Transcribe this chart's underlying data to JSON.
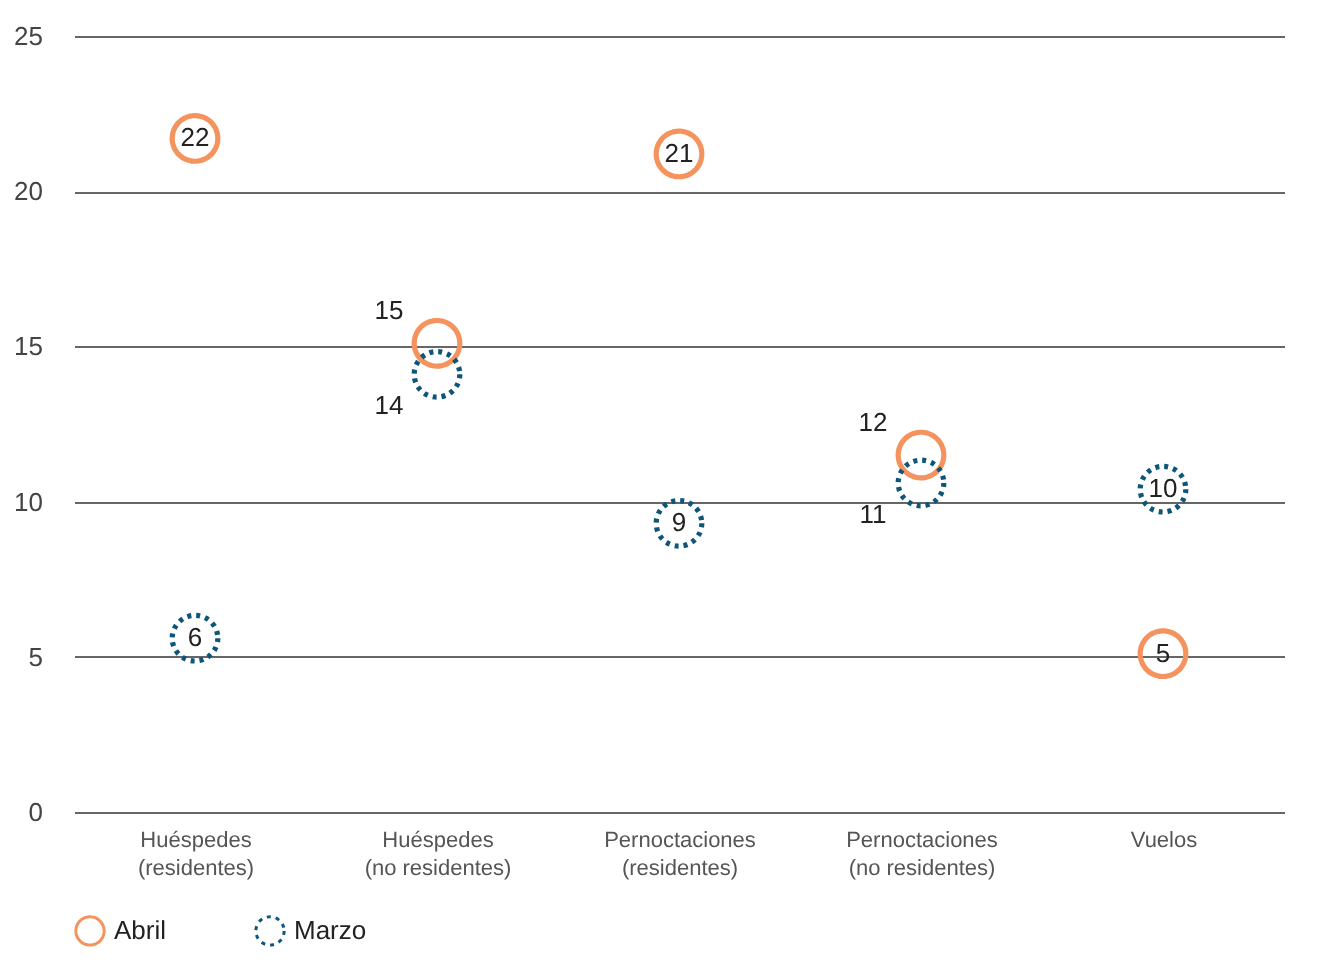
{
  "chart_data": {
    "type": "scatter",
    "categories": [
      "Huéspedes (residentes)",
      "Huéspedes (no residentes)",
      "Pernoctaciones (residentes)",
      "Pernoctaciones (no residentes)",
      "Vuelos"
    ],
    "series": [
      {
        "name": "Abril",
        "color": "#f4935e",
        "line_style": "solid",
        "values": [
          21.7,
          15.1,
          21.2,
          11.5,
          5.1
        ],
        "value_labels": [
          "22",
          "15",
          "21",
          "12",
          "5"
        ]
      },
      {
        "name": "Marzo",
        "color": "#0d5679",
        "line_style": "dotted",
        "values": [
          5.6,
          14.1,
          9.3,
          10.6,
          10.4
        ],
        "value_labels": [
          "6",
          "14",
          "9",
          "11",
          "10"
        ]
      }
    ],
    "ylim": [
      0,
      25
    ],
    "yticks": [
      0,
      5,
      10,
      15,
      20,
      25
    ],
    "grid": "y",
    "legend": "bottom",
    "marker": "circle"
  }
}
